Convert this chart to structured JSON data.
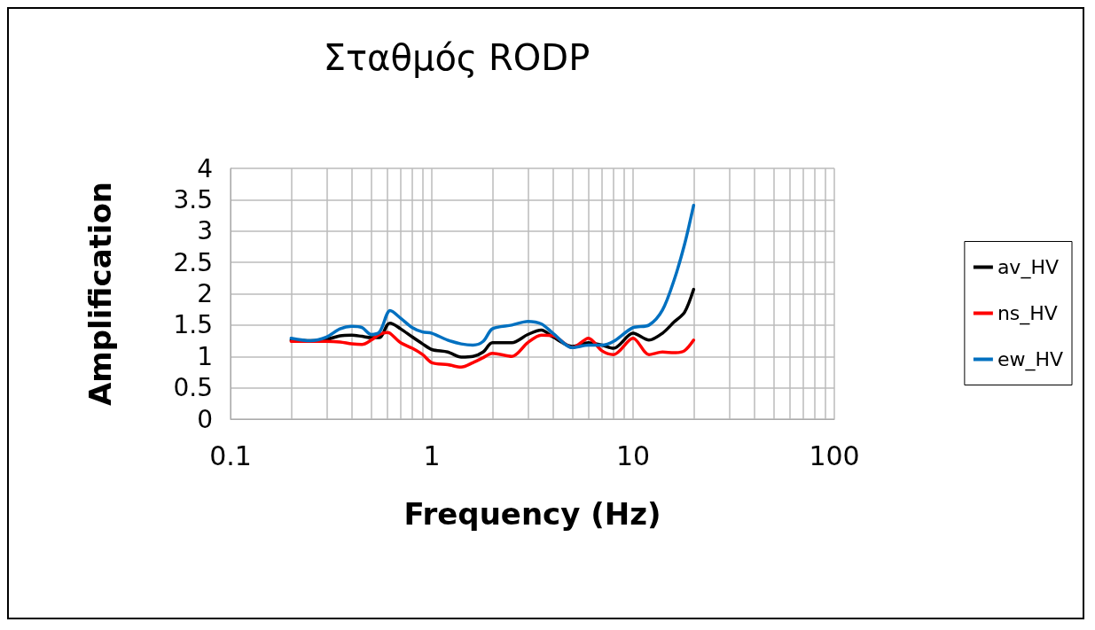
{
  "chart_data": {
    "type": "line",
    "title": "Σταθμός RODP",
    "xlabel": "Frequency (Hz)",
    "ylabel": "Amplification",
    "log": "x",
    "x": [
      0.2,
      0.25,
      0.3,
      0.35,
      0.4,
      0.45,
      0.5,
      0.55,
      0.6,
      0.62,
      0.7,
      0.8,
      0.9,
      1.0,
      1.2,
      1.4,
      1.6,
      1.8,
      2.0,
      2.5,
      3.0,
      3.5,
      4.0,
      5,
      6,
      7,
      8,
      10,
      12,
      14,
      16,
      18,
      20
    ],
    "series": [
      {
        "name": "av_HV",
        "color": "#000000",
        "values": [
          1.26,
          1.25,
          1.27,
          1.33,
          1.34,
          1.32,
          1.3,
          1.3,
          1.5,
          1.53,
          1.44,
          1.31,
          1.2,
          1.11,
          1.07,
          0.99,
          1.0,
          1.07,
          1.22,
          1.22,
          1.35,
          1.42,
          1.31,
          1.16,
          1.22,
          1.18,
          1.13,
          1.37,
          1.26,
          1.37,
          1.55,
          1.7,
          2.07
        ]
      },
      {
        "name": "ns_HV",
        "color": "#ff0000",
        "values": [
          1.24,
          1.24,
          1.24,
          1.23,
          1.2,
          1.19,
          1.26,
          1.35,
          1.38,
          1.37,
          1.22,
          1.13,
          1.03,
          0.9,
          0.87,
          0.83,
          0.9,
          0.98,
          1.05,
          1.0,
          1.22,
          1.34,
          1.33,
          1.14,
          1.29,
          1.09,
          1.03,
          1.29,
          1.03,
          1.07,
          1.06,
          1.09,
          1.26
        ]
      },
      {
        "name": "ew_HV",
        "color": "#0070c0",
        "values": [
          1.29,
          1.25,
          1.31,
          1.44,
          1.48,
          1.46,
          1.35,
          1.39,
          1.68,
          1.73,
          1.61,
          1.46,
          1.39,
          1.37,
          1.26,
          1.2,
          1.18,
          1.24,
          1.44,
          1.5,
          1.56,
          1.52,
          1.37,
          1.14,
          1.18,
          1.18,
          1.24,
          1.46,
          1.5,
          1.74,
          2.22,
          2.78,
          3.41
        ]
      }
    ],
    "xlim": [
      0.1,
      100
    ],
    "xticks": [
      0.1,
      1,
      10,
      100
    ],
    "ylim": [
      0,
      4
    ],
    "yticks": [
      0,
      0.5,
      1,
      1.5,
      2,
      2.5,
      3,
      3.5,
      4
    ],
    "grid": true,
    "legend": "right",
    "marker": "none",
    "line_style": "solid"
  }
}
